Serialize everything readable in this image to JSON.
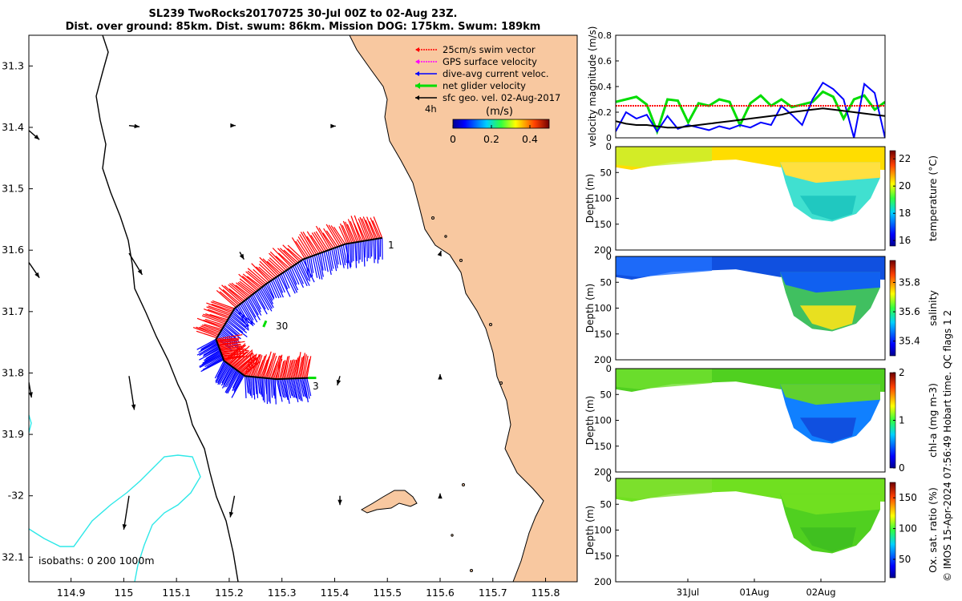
{
  "title": {
    "line1": "SL239 TwoRocks20170725 30-Jul 00Z to 02-Aug 23Z.",
    "line2": "Dist. over ground: 85km. Dist. swum: 86km. Mission DOG: 175km. Swum: 189km"
  },
  "colors": {
    "land": "#f8c8a0",
    "swim": "#ff0000",
    "gps": "#ff00ff",
    "current": "#0000ff",
    "net": "#00dd00",
    "geo": "#000000",
    "isobath200": "#2ee8e8"
  },
  "map": {
    "lon_ticks": [
      "114.9",
      "115",
      "115.1",
      "115.2",
      "115.3",
      "115.4",
      "115.5",
      "115.6",
      "115.7",
      "115.8"
    ],
    "lat_ticks": [
      "31.3",
      "31.4",
      "31.5",
      "31.6",
      "31.7",
      "31.8",
      "31.9",
      "-32",
      "32.1"
    ],
    "lon_range": [
      114.82,
      115.86
    ],
    "lat_range": [
      -32.14,
      -31.25
    ],
    "legend": [
      {
        "label": "25cm/s swim vector",
        "color": "#ff0000"
      },
      {
        "label": "GPS surface velocity",
        "color": "#ff00ff"
      },
      {
        "label": "dive-avg current veloc.",
        "color": "#0000ff"
      },
      {
        "label": "net glider velocity",
        "color": "#00dd00"
      },
      {
        "label": "sfc geo. vel. 02-Aug-2017",
        "color": "#000000"
      }
    ],
    "interval_label": "4h",
    "colorbar_unit": "(m/s)",
    "colorbar_ticks": [
      "0",
      "0.2",
      "0.4"
    ],
    "colorbar_range": [
      0,
      0.5
    ],
    "isobath_label": "isobaths: 0   200  1000m",
    "track_labels": [
      "1",
      "30",
      "3"
    ],
    "track": [
      {
        "lon": 115.49,
        "lat": -31.58
      },
      {
        "lon": 115.42,
        "lat": -31.59
      },
      {
        "lon": 115.34,
        "lat": -31.615
      },
      {
        "lon": 115.27,
        "lat": -31.655
      },
      {
        "lon": 115.21,
        "lat": -31.695
      },
      {
        "lon": 115.175,
        "lat": -31.745
      },
      {
        "lon": 115.19,
        "lat": -31.78
      },
      {
        "lon": 115.23,
        "lat": -31.805
      },
      {
        "lon": 115.29,
        "lat": -31.81
      },
      {
        "lon": 115.35,
        "lat": -31.808
      }
    ],
    "geo_arrows": [
      {
        "lon": 114.82,
        "lat": -31.405,
        "dlon": 0.02,
        "dlat": -0.015
      },
      {
        "lon": 115.01,
        "lat": -31.397,
        "dlon": 0.02,
        "dlat": -0.002
      },
      {
        "lon": 115.21,
        "lat": -31.397,
        "dlon": 0.002,
        "dlat": 0.0
      },
      {
        "lon": 115.4,
        "lat": -31.398,
        "dlon": 0.002,
        "dlat": 0.0
      },
      {
        "lon": 114.82,
        "lat": -31.62,
        "dlon": 0.02,
        "dlat": -0.025
      },
      {
        "lon": 115.01,
        "lat": -31.605,
        "dlon": 0.025,
        "dlat": -0.035
      },
      {
        "lon": 115.22,
        "lat": -31.603,
        "dlon": 0.008,
        "dlat": -0.012
      },
      {
        "lon": 115.6,
        "lat": -31.606,
        "dlon": 0.002,
        "dlat": 0.005
      },
      {
        "lon": 114.82,
        "lat": -31.815,
        "dlon": 0.005,
        "dlat": -0.025
      },
      {
        "lon": 115.01,
        "lat": -31.805,
        "dlon": 0.01,
        "dlat": -0.055
      },
      {
        "lon": 115.41,
        "lat": -31.805,
        "dlon": -0.005,
        "dlat": -0.015
      },
      {
        "lon": 115.6,
        "lat": -31.805,
        "dlon": 0.0,
        "dlat": 0.003
      },
      {
        "lon": 115.01,
        "lat": -32.0,
        "dlon": -0.01,
        "dlat": -0.055
      },
      {
        "lon": 115.21,
        "lat": -32.0,
        "dlon": -0.008,
        "dlat": -0.035
      },
      {
        "lon": 115.41,
        "lat": -32.0,
        "dlon": 0.0,
        "dlat": -0.015
      },
      {
        "lon": 115.6,
        "lat": -32.0,
        "dlon": 0.0,
        "dlat": 0.004
      }
    ]
  },
  "velocity_panel": {
    "ylabel": "velocity magnitude (m/s)",
    "yticks": [
      "0",
      "0.2",
      "0.4",
      "0.6",
      "0.8"
    ],
    "ylim": [
      0,
      0.8
    ],
    "series": [
      {
        "name": "net glider velocity",
        "color": "#00dd00",
        "values": [
          0.28,
          0.3,
          0.32,
          0.26,
          0.05,
          0.3,
          0.29,
          0.12,
          0.27,
          0.25,
          0.3,
          0.28,
          0.1,
          0.27,
          0.33,
          0.25,
          0.3,
          0.24,
          0.26,
          0.28,
          0.36,
          0.32,
          0.15,
          0.3,
          0.33,
          0.22,
          0.28
        ]
      },
      {
        "name": "dive-avg current veloc.",
        "color": "#0000ff",
        "values": [
          0.05,
          0.2,
          0.15,
          0.18,
          0.05,
          0.17,
          0.07,
          0.1,
          0.08,
          0.06,
          0.09,
          0.07,
          0.1,
          0.08,
          0.12,
          0.1,
          0.25,
          0.18,
          0.1,
          0.3,
          0.43,
          0.38,
          0.3,
          0.0,
          0.42,
          0.35,
          0.0
        ]
      },
      {
        "name": "sfc geo. vel.",
        "color": "#000000",
        "values": [
          0.13,
          0.11,
          0.1,
          0.1,
          0.09,
          0.08,
          0.08,
          0.09,
          0.1,
          0.11,
          0.12,
          0.13,
          0.14,
          0.15,
          0.16,
          0.17,
          0.18,
          0.2,
          0.21,
          0.22,
          0.23,
          0.22,
          0.21,
          0.2,
          0.19,
          0.18,
          0.17
        ]
      },
      {
        "name": "25cm/s swim vector",
        "color": "#ff0000",
        "values": [
          0.25,
          0.25,
          0.25,
          0.25,
          0.25,
          0.25,
          0.25,
          0.25,
          0.25,
          0.25,
          0.25,
          0.25,
          0.25,
          0.25,
          0.25,
          0.25,
          0.25,
          0.25,
          0.25,
          0.25,
          0.25,
          0.25,
          0.25,
          0.25,
          0.25,
          0.25,
          0.25
        ]
      }
    ]
  },
  "sections": [
    {
      "ylabel": "Depth (m)",
      "cblabel": "temperature (°C)",
      "cbticks": [
        "16",
        "18",
        "20",
        "22"
      ],
      "cbrange": [
        15.6,
        22.6
      ]
    },
    {
      "ylabel": "Depth (m)",
      "cblabel": "salinity",
      "cbticks": [
        "35.4",
        "35.6",
        "35.8"
      ],
      "cbrange": [
        35.3,
        35.95
      ]
    },
    {
      "ylabel": "Depth (m)",
      "cblabel": "chl-a (mg m-3)",
      "cbticks": [
        "0",
        "1",
        "2"
      ],
      "cbrange": [
        0,
        2
      ]
    },
    {
      "ylabel": "Depth (m)",
      "cblabel": "Ox. sat. ratio (%)",
      "cbticks": [
        "50",
        "100",
        "150"
      ],
      "cbrange": [
        20,
        175
      ]
    }
  ],
  "section_depth_ticks": [
    "0",
    "50",
    "100",
    "150",
    "200"
  ],
  "time_ticks": [
    "31Jul",
    "01Aug",
    "02Aug"
  ],
  "side_caption": "© IMOS 15-Apr-2024 07:56:49 Hobart time. QC flags 1  2"
}
